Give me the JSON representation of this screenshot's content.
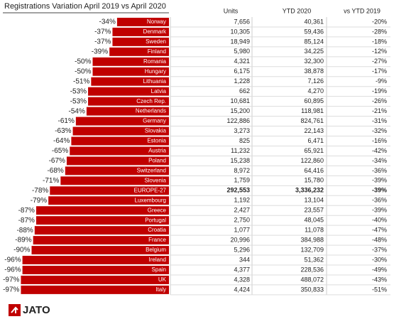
{
  "title": "Registrations Variation April 2019 vs April 2020",
  "columns": [
    "Units",
    "YTD 2020",
    "vs YTD 2019"
  ],
  "rows": [
    {
      "name": "Norway",
      "units": "7,656",
      "ytd": "40,361",
      "ytd_change": "-20%"
    },
    {
      "name": "Denmark",
      "units": "10,305",
      "ytd": "59,436",
      "ytd_change": "-28%"
    },
    {
      "name": "Sweden",
      "units": "18,949",
      "ytd": "85,124",
      "ytd_change": "-18%"
    },
    {
      "name": "Finland",
      "units": "5,980",
      "ytd": "34,225",
      "ytd_change": "-12%"
    },
    {
      "name": "Romania",
      "units": "4,321",
      "ytd": "32,300",
      "ytd_change": "-27%"
    },
    {
      "name": "Hungary",
      "units": "6,175",
      "ytd": "38,878",
      "ytd_change": "-17%"
    },
    {
      "name": "Lithuania",
      "units": "1,228",
      "ytd": "7,126",
      "ytd_change": "-9%"
    },
    {
      "name": "Latvia",
      "units": "662",
      "ytd": "4,270",
      "ytd_change": "-19%"
    },
    {
      "name": "Czech Rep.",
      "units": "10,681",
      "ytd": "60,895",
      "ytd_change": "-26%"
    },
    {
      "name": "Netherlands",
      "units": "15,200",
      "ytd": "118,981",
      "ytd_change": "-21%"
    },
    {
      "name": "Germany",
      "units": "122,886",
      "ytd": "824,761",
      "ytd_change": "-31%"
    },
    {
      "name": "Slovakia",
      "units": "3,273",
      "ytd": "22,143",
      "ytd_change": "-32%"
    },
    {
      "name": "Estonia",
      "units": "825",
      "ytd": "6,471",
      "ytd_change": "-16%"
    },
    {
      "name": "Austria",
      "units": "11,232",
      "ytd": "65,921",
      "ytd_change": "-42%"
    },
    {
      "name": "Poland",
      "units": "15,238",
      "ytd": "122,860",
      "ytd_change": "-34%"
    },
    {
      "name": "Switzerland",
      "units": "8,972",
      "ytd": "64,416",
      "ytd_change": "-36%"
    },
    {
      "name": "Slovenia",
      "units": "1,759",
      "ytd": "15,780",
      "ytd_change": "-39%"
    },
    {
      "name": "EUROPE-27",
      "units": "292,553",
      "ytd": "3,336,232",
      "ytd_change": "-39%",
      "bold": true
    },
    {
      "name": "Luxembourg",
      "units": "1,192",
      "ytd": "13,104",
      "ytd_change": "-36%"
    },
    {
      "name": "Greece",
      "units": "2,427",
      "ytd": "23,557",
      "ytd_change": "-39%"
    },
    {
      "name": "Portugal",
      "units": "2,750",
      "ytd": "48,045",
      "ytd_change": "-40%"
    },
    {
      "name": "Croatia",
      "units": "1,077",
      "ytd": "11,078",
      "ytd_change": "-47%"
    },
    {
      "name": "France",
      "units": "20,996",
      "ytd": "384,988",
      "ytd_change": "-48%"
    },
    {
      "name": "Belgium",
      "units": "5,296",
      "ytd": "132,709",
      "ytd_change": "-37%"
    },
    {
      "name": "Ireland",
      "units": "344",
      "ytd": "51,362",
      "ytd_change": "-30%"
    },
    {
      "name": "Spain",
      "units": "4,377",
      "ytd": "228,536",
      "ytd_change": "-49%"
    },
    {
      "name": "UK",
      "units": "4,328",
      "ytd": "488,072",
      "ytd_change": "-43%"
    },
    {
      "name": "Italy",
      "units": "4,424",
      "ytd": "350,833",
      "ytd_change": "-51%"
    }
  ],
  "variation": {
    "color": "#c00000",
    "values": [
      -34,
      -37,
      -37,
      -39,
      -50,
      -50,
      -51,
      -53,
      -53,
      -54,
      -61,
      -63,
      -64,
      -65,
      -67,
      -68,
      -71,
      -78,
      -79,
      -87,
      -87,
      -88,
      -89,
      -90,
      -96,
      -96,
      -97,
      -97
    ],
    "value_labels": [
      "-34%",
      "-37%",
      "-37%",
      "-39%",
      "-50%",
      "-50%",
      "-51%",
      "-53%",
      "-53%",
      "-54%",
      "-61%",
      "-63%",
      "-64%",
      "-65%",
      "-67%",
      "-68%",
      "-71%",
      "-78%",
      "-79%",
      "-87%",
      "-87%",
      "-88%",
      "-89%",
      "-90%",
      "-96%",
      "-96%",
      "-97%",
      "-97%"
    ]
  },
  "logo": "JATO"
}
